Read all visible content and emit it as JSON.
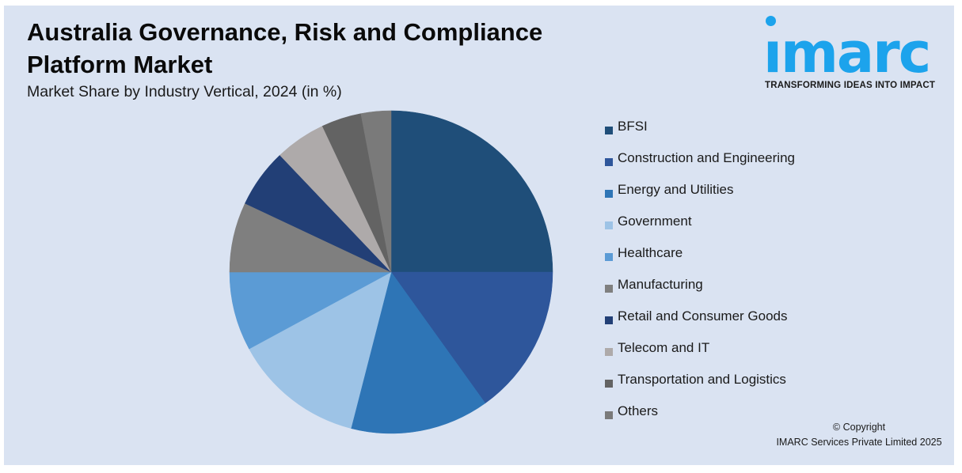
{
  "header": {
    "title": "Australia Governance, Risk and Compliance Platform Market",
    "subtitle": "Market Share by Industry Vertical, 2024 (in %)"
  },
  "logo": {
    "wordmark": "imarc",
    "tagline": "TRANSFORMING IDEAS INTO IMPACT",
    "color": "#1ca3ec"
  },
  "footer": {
    "copyright_line1": "© Copyright",
    "copyright_line2": "IMARC Services Private Limited 2025"
  },
  "chart_data": {
    "type": "pie",
    "title": "Australia Governance, Risk and Compliance Platform Market",
    "subtitle": "Market Share by Industry Vertical, 2024 (in %)",
    "start_angle": "12 o'clock, clockwise",
    "legend_position": "right",
    "categories": [
      "BFSI",
      "Construction and Engineering",
      "Energy and Utilities",
      "Government",
      "Healthcare",
      "Manufacturing",
      "Retail and Consumer Goods",
      "Telecom and IT",
      "Transportation and Logistics",
      "Others"
    ],
    "values": [
      25.0,
      15.1,
      13.9,
      13.1,
      7.9,
      7.0,
      5.9,
      5.1,
      4.0,
      3.0
    ],
    "colors": [
      "#1f4e79",
      "#2e569b",
      "#2e75b6",
      "#9dc3e6",
      "#5b9bd5",
      "#7f7f7f",
      "#223f76",
      "#aeaaaa",
      "#636363",
      "#7a7a7a"
    ]
  }
}
